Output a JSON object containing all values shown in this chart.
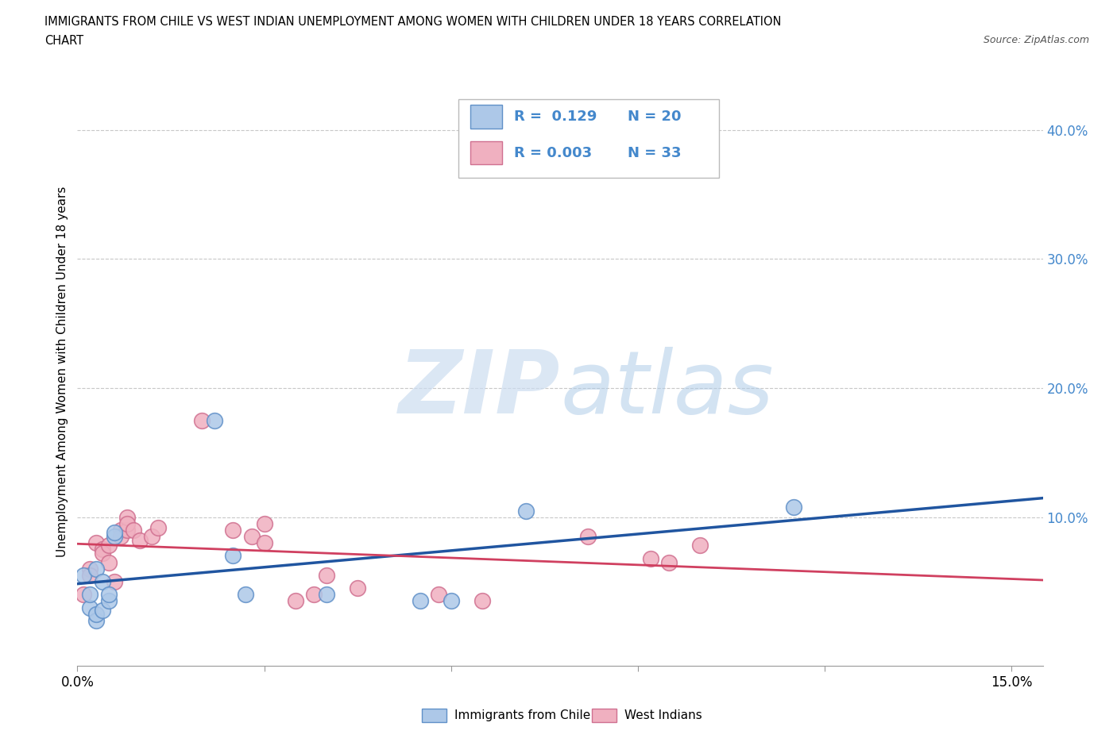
{
  "title_line1": "IMMIGRANTS FROM CHILE VS WEST INDIAN UNEMPLOYMENT AMONG WOMEN WITH CHILDREN UNDER 18 YEARS CORRELATION",
  "title_line2": "CHART",
  "source_text": "Source: ZipAtlas.com",
  "ylabel": "Unemployment Among Women with Children Under 18 years",
  "xlim": [
    0.0,
    0.155
  ],
  "ylim": [
    -0.015,
    0.44
  ],
  "xtick_positions": [
    0.0,
    0.03,
    0.06,
    0.09,
    0.12,
    0.15
  ],
  "xticklabels_show": [
    "0.0%",
    "",
    "",
    "",
    "",
    "15.0%"
  ],
  "yticks_right": [
    0.0,
    0.1,
    0.2,
    0.3,
    0.4
  ],
  "yticklabels_right": [
    "",
    "10.0%",
    "20.0%",
    "30.0%",
    "40.0%"
  ],
  "legend_r1": "R =  0.129",
  "legend_n1": "N = 20",
  "legend_r2": "R = 0.003",
  "legend_n2": "N = 33",
  "color_chile_fill": "#adc8e8",
  "color_chile_edge": "#6090c8",
  "color_chile_line": "#2055a0",
  "color_wi_fill": "#f0b0c0",
  "color_wi_edge": "#d07090",
  "color_wi_line": "#d04060",
  "color_right_axis": "#4488cc",
  "color_grid": "#c8c8c8",
  "chile_x": [
    0.001,
    0.002,
    0.002,
    0.003,
    0.003,
    0.003,
    0.004,
    0.004,
    0.005,
    0.005,
    0.006,
    0.006,
    0.022,
    0.025,
    0.027,
    0.04,
    0.055,
    0.06,
    0.072,
    0.115
  ],
  "chile_y": [
    0.055,
    0.03,
    0.04,
    0.02,
    0.025,
    0.06,
    0.028,
    0.05,
    0.035,
    0.04,
    0.085,
    0.088,
    0.175,
    0.07,
    0.04,
    0.04,
    0.035,
    0.035,
    0.105,
    0.108
  ],
  "wi_x": [
    0.001,
    0.002,
    0.002,
    0.003,
    0.004,
    0.004,
    0.005,
    0.005,
    0.006,
    0.007,
    0.007,
    0.008,
    0.008,
    0.008,
    0.009,
    0.01,
    0.012,
    0.013,
    0.02,
    0.025,
    0.028,
    0.03,
    0.03,
    0.035,
    0.038,
    0.04,
    0.045,
    0.058,
    0.065,
    0.082,
    0.092,
    0.095,
    0.1
  ],
  "wi_y": [
    0.04,
    0.06,
    0.055,
    0.08,
    0.075,
    0.072,
    0.078,
    0.065,
    0.05,
    0.09,
    0.085,
    0.09,
    0.1,
    0.095,
    0.09,
    0.082,
    0.085,
    0.092,
    0.175,
    0.09,
    0.085,
    0.095,
    0.08,
    0.035,
    0.04,
    0.055,
    0.045,
    0.04,
    0.035,
    0.085,
    0.068,
    0.065,
    0.078
  ],
  "fig_width": 14.06,
  "fig_height": 9.3,
  "dpi": 100,
  "marker_size": 200
}
